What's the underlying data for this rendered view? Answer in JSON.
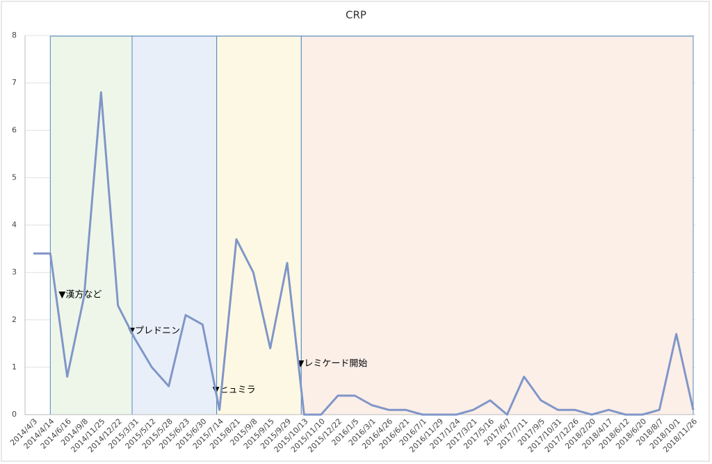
{
  "chart_data": {
    "type": "line",
    "title": "CRP",
    "categories": [
      "2014/4/3",
      "2014/4/14",
      "2014/6/16",
      "2014/9/8",
      "2014/11/25",
      "2014/12/22",
      "2015/3/31",
      "2015/5/12",
      "2015/5/28",
      "2015/6/23",
      "2015/6/30",
      "2015/7/14",
      "2015/8/21",
      "2015/9/8",
      "2015/9/15",
      "2015/9/29",
      "2015/10/13",
      "2015/11/10",
      "2015/12/22",
      "2016/1/5",
      "2016/3/1",
      "2016/4/26",
      "2016/6/21",
      "2016/7/1",
      "2016/11/29",
      "2017/1/24",
      "2017/3/21",
      "2017/5/16",
      "2017/6/7",
      "2017/7/11",
      "2017/9/5",
      "2017/10/31",
      "2017/12/26",
      "2018/2/20",
      "2018/4/17",
      "2018/6/12",
      "2018/6/20",
      "2018/8/7",
      "2018/10/1",
      "2018/11/26"
    ],
    "series": [
      {
        "name": "CRP",
        "color": "#8096c8",
        "values": [
          3.4,
          3.4,
          0.8,
          2.5,
          6.8,
          2.3,
          1.6,
          1.0,
          0.6,
          2.1,
          1.9,
          0.1,
          3.7,
          3.0,
          1.4,
          3.2,
          0,
          0,
          0.4,
          0.4,
          0.2,
          0.1,
          0.1,
          0,
          0,
          0,
          0.1,
          0.3,
          0,
          0.8,
          0.3,
          0.1,
          0.1,
          0,
          0.1,
          0,
          0,
          0.1,
          1.7,
          0.1
        ]
      }
    ],
    "ylim": [
      0,
      8
    ],
    "yticks": [
      0,
      1,
      2,
      3,
      4,
      5,
      6,
      7,
      8
    ],
    "grid": true,
    "bands": [
      {
        "label": "▼漢方など",
        "start": 1,
        "end": 6,
        "color": "#eef6ea"
      },
      {
        "label": "▼プレドニン",
        "start": 6,
        "end": 11,
        "color": "#e9eff9"
      },
      {
        "label": "▼ヒュミラ",
        "start": 11,
        "end": 16,
        "color": "#fdf8e3"
      },
      {
        "label": "▼レミケード開始",
        "start": 16,
        "end": 39,
        "color": "#fbefe8"
      }
    ]
  }
}
